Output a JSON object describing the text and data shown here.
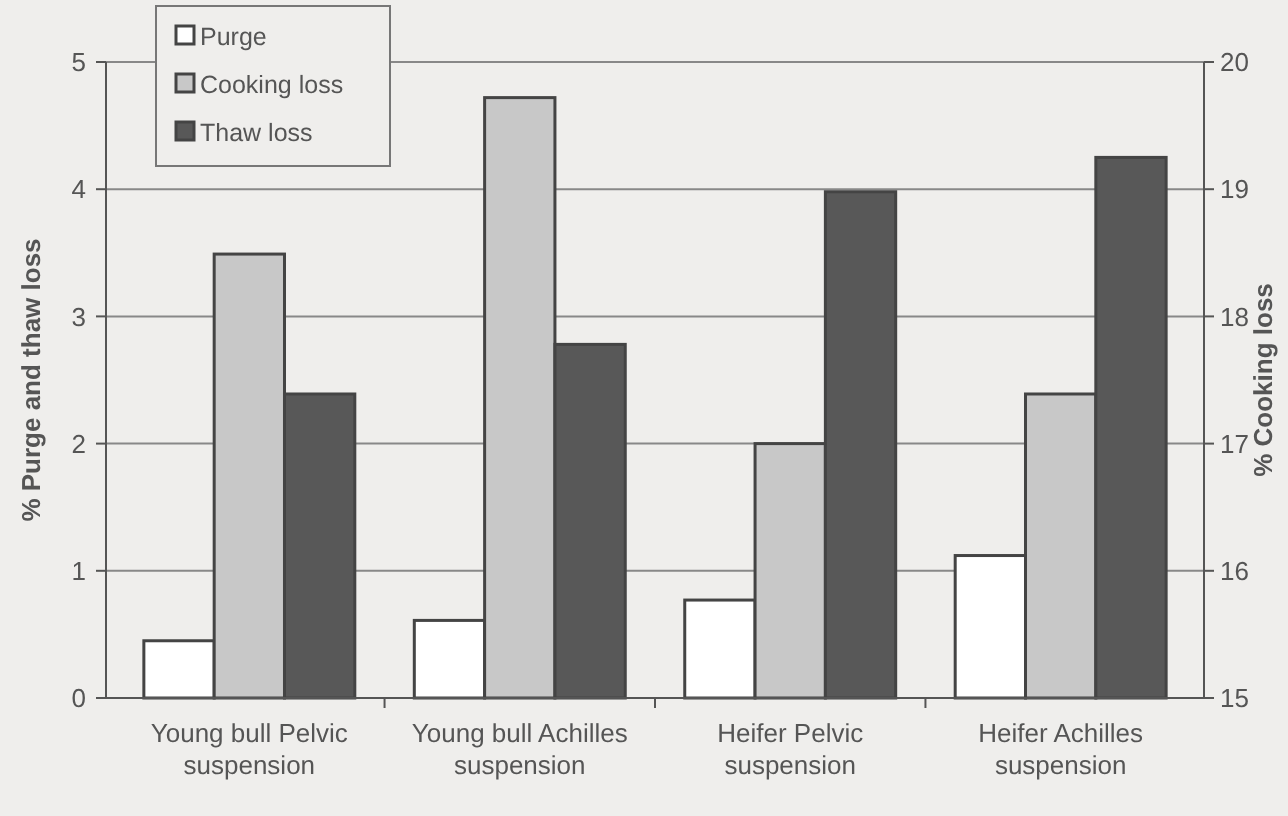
{
  "chart_data": {
    "type": "bar",
    "categories": [
      "Young bull Pelvic suspension",
      "Young bull Achilles suspension",
      "Heifer Pelvic suspension",
      "Heifer Achilles suspension"
    ],
    "ylabel": "% Purge and thaw loss",
    "y2label": "% Cooking loss",
    "series": [
      {
        "name": "Purge",
        "color": "#ffffff",
        "values": [
          0.45,
          0.61,
          0.77,
          1.12
        ]
      },
      {
        "name": "Cooking loss",
        "color": "#c8c8c8",
        "values": [
          18.49,
          19.72,
          17.0,
          17.39
        ],
        "axis": "y2"
      },
      {
        "name": "Thaw loss",
        "color": "#585858",
        "values": [
          2.39,
          2.78,
          3.98,
          4.25
        ]
      }
    ],
    "ylim": [
      0,
      5
    ],
    "yticks": [
      0,
      1,
      2,
      3,
      4,
      5
    ],
    "y2lim": [
      15,
      20
    ],
    "y2ticks": [
      15,
      16,
      17,
      18,
      19,
      20
    ],
    "grid": "y",
    "legend": "top left"
  }
}
